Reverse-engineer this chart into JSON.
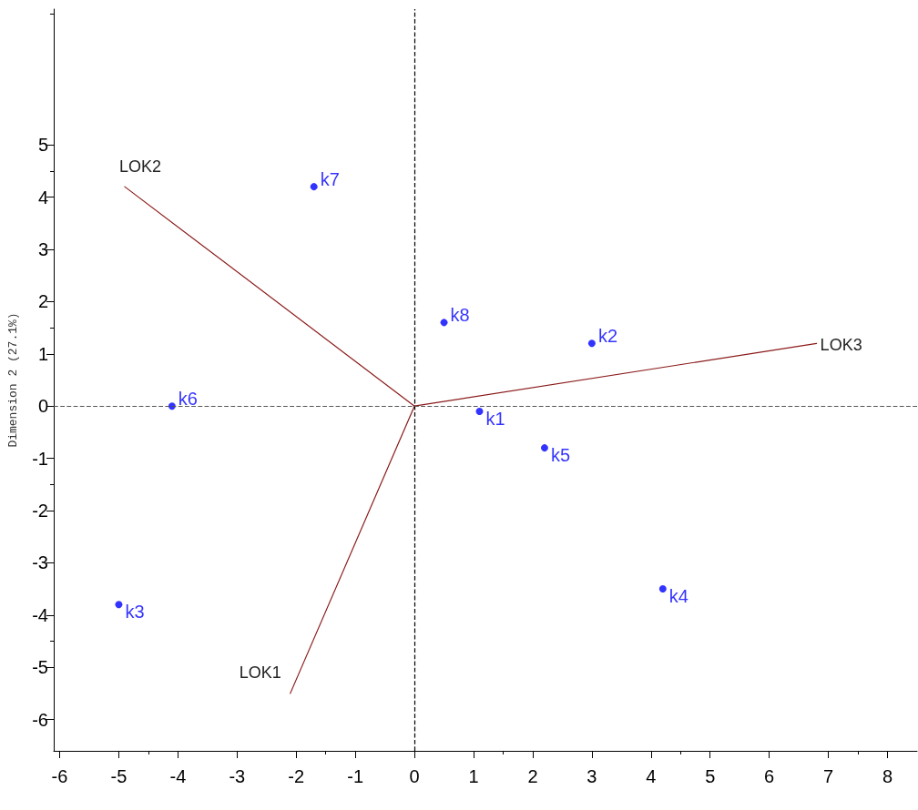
{
  "chart_data": {
    "type": "scatter",
    "ylabel": "Dimension 2 (27.1%)",
    "xlim": [
      -6.1,
      8.5
    ],
    "ylim": [
      -6.6,
      7.6
    ],
    "xticks": [
      -6,
      -5,
      -4,
      -3,
      -2,
      -1,
      0,
      1,
      2,
      3,
      4,
      5,
      6,
      7,
      8
    ],
    "yticks": [
      -6,
      -5,
      -4,
      -3,
      -2,
      -1,
      0,
      1,
      2,
      3,
      4,
      5
    ],
    "grid": false,
    "legend": false,
    "ref_lines": [
      {
        "axis": "x",
        "value": 0,
        "line_style": "dashed",
        "color": "#000000"
      },
      {
        "axis": "y",
        "value": 0,
        "line_style": "dashed",
        "color": "#555555"
      }
    ],
    "series": [
      {
        "type": "scatter",
        "marker": "circle",
        "color": "#0000ff",
        "x": [
          1.1,
          3.0,
          -5.0,
          4.2,
          2.2,
          -4.1,
          -1.7,
          0.5
        ],
        "values": [
          -0.1,
          1.2,
          -3.8,
          -3.5,
          -0.8,
          0.0,
          4.2,
          1.6
        ],
        "value_labels": [
          "k1",
          "k2",
          "k3",
          "k4",
          "k5",
          "k6",
          "k7",
          "k8"
        ]
      },
      {
        "type": "line",
        "marker": "none",
        "name": "LOK1",
        "color": "#8b1a1a",
        "line_style": "solid",
        "x": [
          0,
          -2.1
        ],
        "values": [
          0,
          -5.5
        ]
      },
      {
        "type": "line",
        "marker": "none",
        "name": "LOK2",
        "color": "#8b1a1a",
        "line_style": "solid",
        "x": [
          0,
          -4.9
        ],
        "values": [
          0,
          4.2
        ]
      },
      {
        "type": "line",
        "marker": "none",
        "name": "LOK3",
        "color": "#8b1a1a",
        "line_style": "solid",
        "x": [
          0,
          6.8
        ],
        "values": [
          0,
          1.2
        ]
      }
    ]
  }
}
